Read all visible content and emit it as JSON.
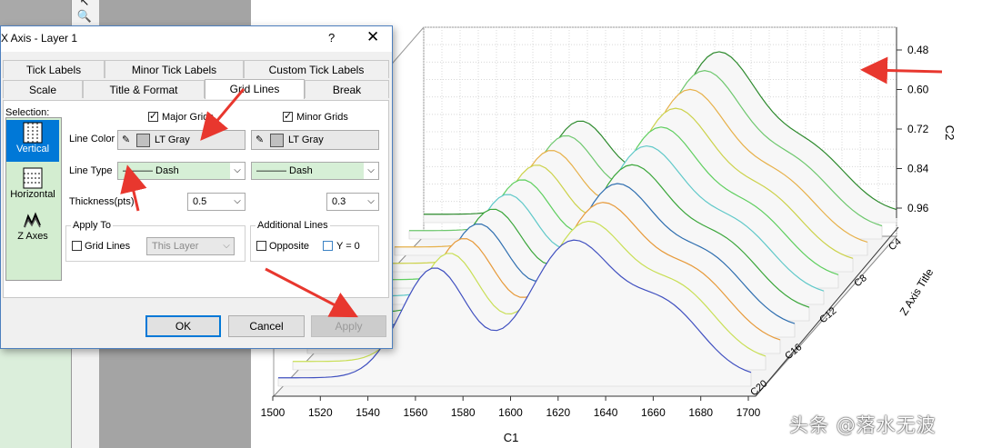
{
  "dialog": {
    "title": "X Axis - Layer 1",
    "help": "?",
    "close": "✕",
    "tabs_row1": [
      {
        "label": "Tick Labels"
      },
      {
        "label": "Minor Tick Labels"
      },
      {
        "label": "Custom Tick Labels"
      }
    ],
    "tabs_row2": [
      {
        "label": "Scale"
      },
      {
        "label": "Title & Format"
      },
      {
        "label": "Grid Lines",
        "active": true
      },
      {
        "label": "Break"
      }
    ],
    "selection": {
      "label": "Selection:",
      "items": [
        {
          "label": "Vertical",
          "icon": "vertical-grid-icon",
          "selected": true
        },
        {
          "label": "Horizontal",
          "icon": "horizontal-grid-icon"
        },
        {
          "label": "Z Axes",
          "icon": "z-axes-icon"
        }
      ]
    },
    "major": {
      "checkbox_label": "Major Grids",
      "checked": true,
      "color_label": "LT Gray",
      "line_type": "——— Dash",
      "thickness": "0.5"
    },
    "minor": {
      "checkbox_label": "Minor Grids",
      "checked": true,
      "color_label": "LT Gray",
      "line_type": "——— Dash",
      "thickness": "0.3"
    },
    "row_labels": {
      "line_color": "Line Color",
      "line_type": "Line Type",
      "thickness": "Thickness(pts)"
    },
    "apply_to": {
      "title": "Apply To",
      "grid_lines_label": "Grid Lines",
      "grid_lines_checked": false,
      "scope_value": "This Layer"
    },
    "additional_lines": {
      "title": "Additional Lines",
      "opposite_label": "Opposite",
      "y0_label": "Y = 0"
    },
    "buttons": {
      "ok": "OK",
      "cancel": "Cancel",
      "apply": "Apply"
    }
  },
  "chart_data": {
    "type": "area",
    "subtype": "3D waterfall",
    "xlabel": "C1",
    "ylabel": "C2",
    "zlabel": "Z Axis Title",
    "x_ticks": [
      "1500",
      "1520",
      "1540",
      "1560",
      "1580",
      "1600",
      "1620",
      "1640",
      "1660",
      "1680",
      "1700"
    ],
    "y_ticks": [
      "0.48",
      "0.60",
      "0.72",
      "0.84",
      "0.96"
    ],
    "z_ticks": [
      "C4",
      "C8",
      "C12",
      "C16",
      "C20"
    ],
    "xlim": [
      1500,
      1700
    ],
    "grid": "dotted",
    "series_count": 11
  },
  "app": {
    "toolbar_icons": [
      "pointer-icon",
      "zoom-icon"
    ]
  },
  "watermark": "头条 @落水无波"
}
